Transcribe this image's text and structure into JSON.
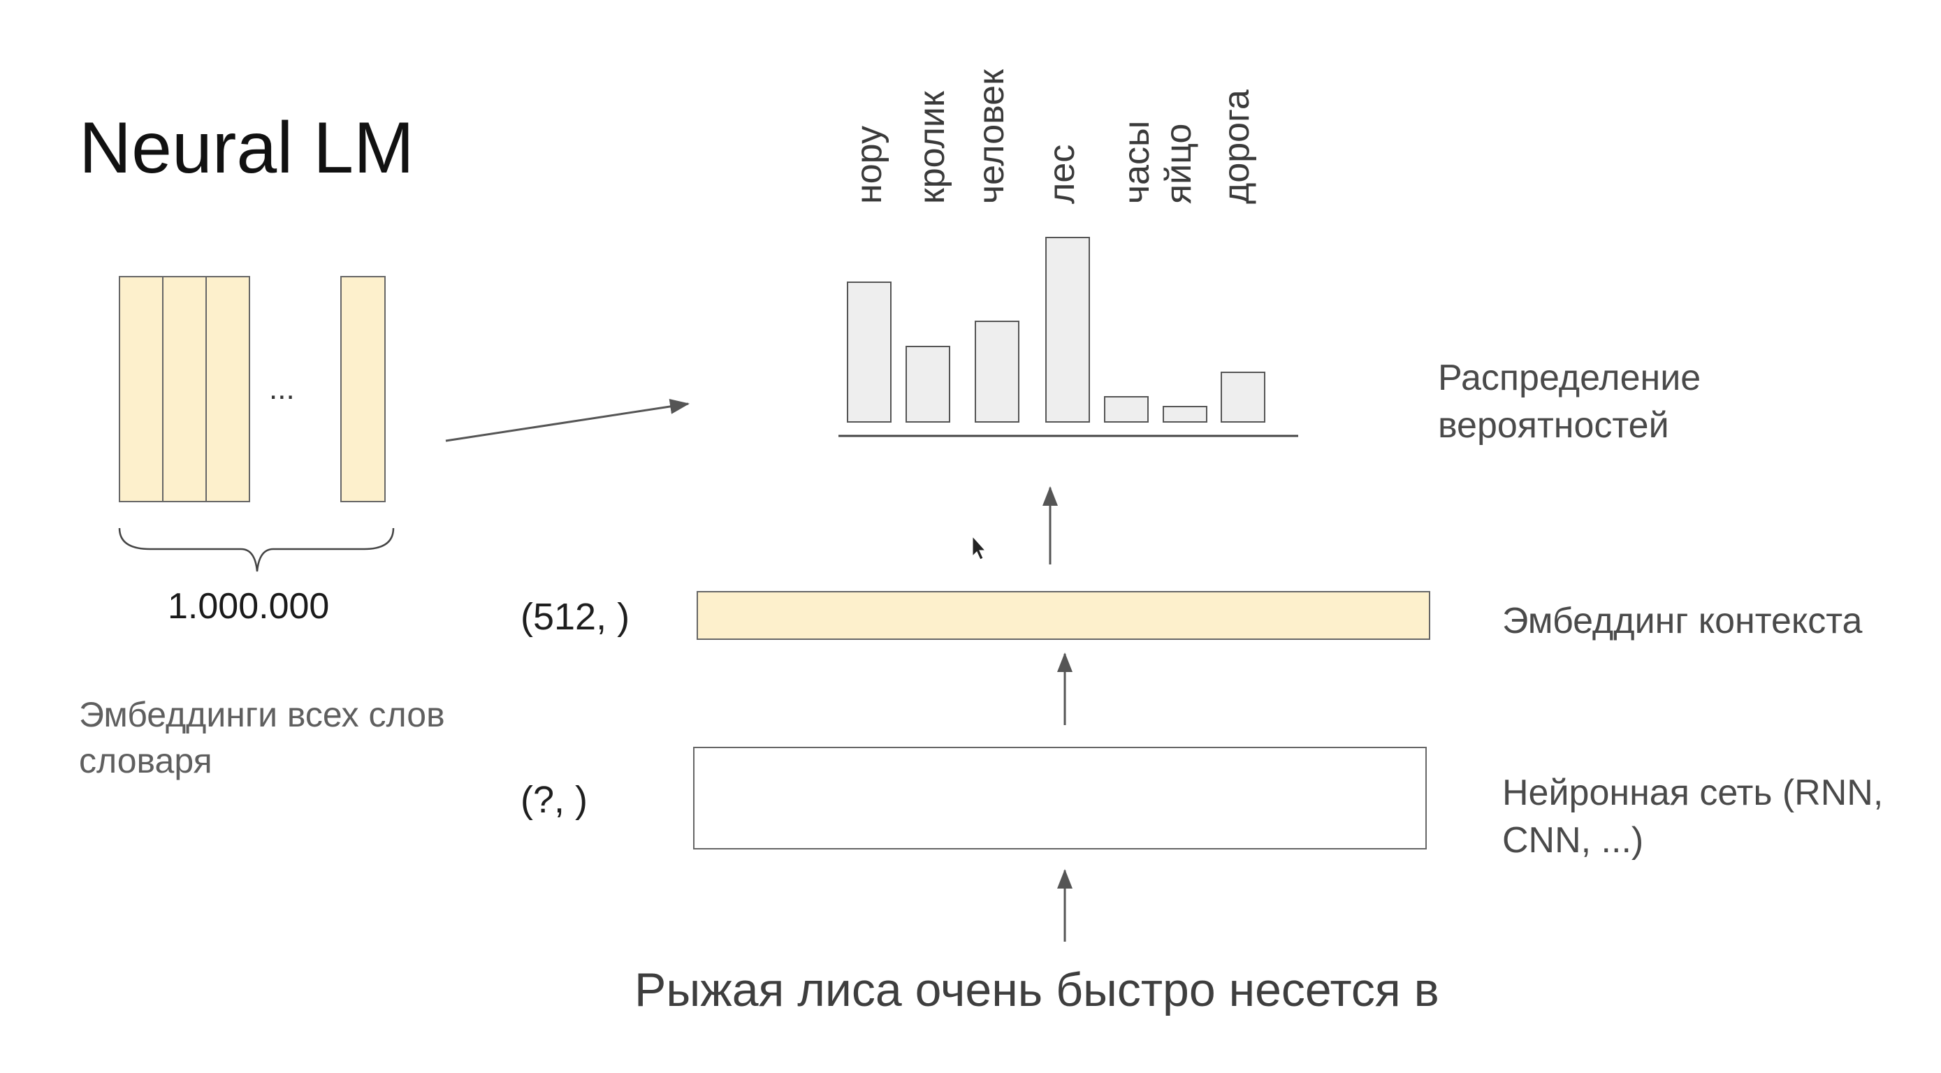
{
  "title": "Neural LM",
  "vocab": {
    "ellipsis": "...",
    "count": "1.000.000",
    "caption": "Эмбеддинги всех слов словаря",
    "column_color": "#fdf0cc"
  },
  "distribution": {
    "label": "Распределение вероятностей",
    "bar_color": "#eeeeee",
    "words": [
      "нору",
      "кролик",
      "человек",
      "лес",
      "часы",
      "яйцо",
      "дорога"
    ]
  },
  "context": {
    "shape": "(512, )",
    "label": "Эмбеддинг контекста",
    "fill_color": "#fdf0cc"
  },
  "network": {
    "shape": "(?, )",
    "label": "Нейронная сеть (RNN, CNN, ...)"
  },
  "input_sentence": "Рыжая лиса очень быстро несется в",
  "icons": [
    "arrow-icon",
    "mouse-cursor-icon",
    "curly-brace-icon"
  ]
}
